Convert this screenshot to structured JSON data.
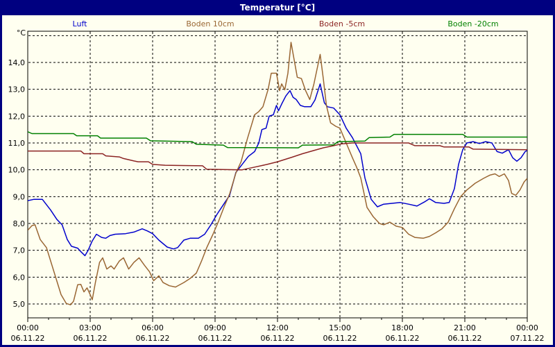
{
  "title_bar": {
    "title": "Temperatur [°C]"
  },
  "legend": {
    "items": [
      {
        "label": "Luft",
        "color": "#0000CC"
      },
      {
        "label": "Boden 10cm",
        "color": "#996633"
      },
      {
        "label": "Boden -5cm",
        "color": "#8B2323"
      },
      {
        "label": "Boden -20cm",
        "color": "#008000"
      }
    ]
  },
  "y_axis": {
    "unit": "°C",
    "tick_values": [
      14,
      13,
      12,
      11,
      10,
      9,
      8,
      7,
      6,
      5
    ],
    "tick_labels": [
      "14,0",
      "13,0",
      "12,0",
      "11,0",
      "10,0",
      "9,0",
      "8,0",
      "7,0",
      "6,0",
      "5,0"
    ],
    "gridline_values": [
      15,
      14,
      13,
      12,
      11,
      10,
      9,
      8,
      7,
      6,
      5
    ]
  },
  "x_axis": {
    "major_hours": [
      0,
      3,
      6,
      9,
      12,
      15,
      18,
      21,
      24
    ],
    "major_labels": [
      {
        "time": "00:00",
        "date": "06.11.22"
      },
      {
        "time": "03:00",
        "date": "06.11.22"
      },
      {
        "time": "06:00",
        "date": "06.11.22"
      },
      {
        "time": "09:00",
        "date": "06.11.22"
      },
      {
        "time": "12:00",
        "date": "06.11.22"
      },
      {
        "time": "15:00",
        "date": "06.11.22"
      },
      {
        "time": "18:00",
        "date": "06.11.22"
      },
      {
        "time": "21:00",
        "date": "06.11.22"
      },
      {
        "time": "00:00",
        "date": "07.11.22"
      }
    ],
    "minor_tick_step_hours": 1
  },
  "chart_data": {
    "type": "line",
    "title": "Temperatur [°C]",
    "x_unit": "hours since 06.11.22 00:00",
    "y_unit": "°C",
    "ylim_gridlines": [
      5,
      15
    ],
    "x_major_gridline_step_hours": 3,
    "grid": "dashed",
    "legend_position": "top",
    "series": [
      {
        "name": "Luft",
        "color": "#0000CC",
        "points": [
          [
            0,
            8.85
          ],
          [
            0.3,
            8.9
          ],
          [
            0.7,
            8.9
          ],
          [
            1.1,
            8.5
          ],
          [
            1.4,
            8.15
          ],
          [
            1.65,
            7.95
          ],
          [
            1.9,
            7.4
          ],
          [
            2.1,
            7.15
          ],
          [
            2.4,
            7.08
          ],
          [
            2.55,
            6.95
          ],
          [
            2.75,
            6.8
          ],
          [
            2.9,
            7.0
          ],
          [
            3.1,
            7.35
          ],
          [
            3.3,
            7.6
          ],
          [
            3.55,
            7.48
          ],
          [
            3.75,
            7.45
          ],
          [
            3.95,
            7.55
          ],
          [
            4.2,
            7.6
          ],
          [
            4.7,
            7.62
          ],
          [
            5.1,
            7.68
          ],
          [
            5.5,
            7.8
          ],
          [
            5.75,
            7.72
          ],
          [
            6.0,
            7.62
          ],
          [
            6.3,
            7.38
          ],
          [
            6.7,
            7.12
          ],
          [
            7.0,
            7.05
          ],
          [
            7.2,
            7.1
          ],
          [
            7.5,
            7.38
          ],
          [
            7.8,
            7.45
          ],
          [
            8.2,
            7.45
          ],
          [
            8.5,
            7.6
          ],
          [
            8.8,
            7.95
          ],
          [
            9.1,
            8.35
          ],
          [
            9.4,
            8.7
          ],
          [
            9.7,
            9.05
          ],
          [
            10.0,
            9.9
          ],
          [
            10.3,
            10.2
          ],
          [
            10.6,
            10.5
          ],
          [
            10.9,
            10.68
          ],
          [
            11.1,
            11.0
          ],
          [
            11.25,
            11.5
          ],
          [
            11.45,
            11.55
          ],
          [
            11.6,
            12.0
          ],
          [
            11.8,
            12.05
          ],
          [
            11.95,
            12.4
          ],
          [
            12.05,
            12.2
          ],
          [
            12.2,
            12.45
          ],
          [
            12.4,
            12.75
          ],
          [
            12.6,
            12.95
          ],
          [
            12.75,
            12.7
          ],
          [
            12.9,
            12.62
          ],
          [
            13.1,
            12.4
          ],
          [
            13.3,
            12.35
          ],
          [
            13.6,
            12.35
          ],
          [
            13.8,
            12.6
          ],
          [
            14.05,
            13.2
          ],
          [
            14.25,
            12.5
          ],
          [
            14.4,
            12.35
          ],
          [
            14.7,
            12.3
          ],
          [
            15.0,
            12.05
          ],
          [
            15.3,
            11.55
          ],
          [
            15.6,
            11.2
          ],
          [
            15.8,
            10.9
          ],
          [
            16.0,
            10.6
          ],
          [
            16.2,
            9.7
          ],
          [
            16.5,
            8.9
          ],
          [
            16.8,
            8.62
          ],
          [
            17.1,
            8.72
          ],
          [
            17.5,
            8.75
          ],
          [
            17.9,
            8.78
          ],
          [
            18.3,
            8.72
          ],
          [
            18.7,
            8.65
          ],
          [
            19.1,
            8.82
          ],
          [
            19.3,
            8.92
          ],
          [
            19.6,
            8.78
          ],
          [
            20.0,
            8.75
          ],
          [
            20.25,
            8.78
          ],
          [
            20.5,
            9.3
          ],
          [
            20.7,
            10.2
          ],
          [
            20.9,
            10.75
          ],
          [
            21.1,
            11.0
          ],
          [
            21.4,
            11.05
          ],
          [
            21.7,
            10.98
          ],
          [
            22.0,
            11.05
          ],
          [
            22.3,
            11.0
          ],
          [
            22.55,
            10.68
          ],
          [
            22.8,
            10.62
          ],
          [
            23.1,
            10.75
          ],
          [
            23.3,
            10.45
          ],
          [
            23.5,
            10.32
          ],
          [
            23.7,
            10.45
          ],
          [
            23.9,
            10.68
          ],
          [
            24,
            10.72
          ]
        ]
      },
      {
        "name": "Boden 10cm",
        "color": "#996633",
        "points": [
          [
            0,
            7.75
          ],
          [
            0.2,
            7.92
          ],
          [
            0.35,
            7.95
          ],
          [
            0.6,
            7.4
          ],
          [
            0.9,
            7.1
          ],
          [
            1.1,
            6.6
          ],
          [
            1.3,
            6.1
          ],
          [
            1.6,
            5.35
          ],
          [
            1.85,
            5.02
          ],
          [
            2.05,
            4.97
          ],
          [
            2.2,
            5.1
          ],
          [
            2.4,
            5.72
          ],
          [
            2.55,
            5.73
          ],
          [
            2.7,
            5.45
          ],
          [
            2.85,
            5.6
          ],
          [
            3.0,
            5.35
          ],
          [
            3.1,
            5.16
          ],
          [
            3.25,
            5.8
          ],
          [
            3.45,
            6.55
          ],
          [
            3.6,
            6.72
          ],
          [
            3.8,
            6.3
          ],
          [
            4.0,
            6.42
          ],
          [
            4.15,
            6.3
          ],
          [
            4.4,
            6.6
          ],
          [
            4.6,
            6.72
          ],
          [
            4.85,
            6.3
          ],
          [
            5.1,
            6.55
          ],
          [
            5.35,
            6.72
          ],
          [
            5.6,
            6.45
          ],
          [
            5.85,
            6.2
          ],
          [
            6.05,
            5.87
          ],
          [
            6.3,
            6.05
          ],
          [
            6.5,
            5.8
          ],
          [
            6.8,
            5.68
          ],
          [
            7.1,
            5.63
          ],
          [
            7.5,
            5.8
          ],
          [
            7.8,
            5.95
          ],
          [
            8.1,
            6.15
          ],
          [
            8.35,
            6.6
          ],
          [
            8.6,
            7.1
          ],
          [
            8.9,
            7.6
          ],
          [
            9.15,
            8.05
          ],
          [
            9.45,
            8.65
          ],
          [
            9.7,
            9.1
          ],
          [
            10.0,
            9.88
          ],
          [
            10.25,
            10.3
          ],
          [
            10.55,
            11.15
          ],
          [
            10.9,
            12.05
          ],
          [
            11.1,
            12.17
          ],
          [
            11.3,
            12.35
          ],
          [
            11.55,
            13.0
          ],
          [
            11.7,
            13.6
          ],
          [
            11.95,
            13.6
          ],
          [
            12.1,
            12.95
          ],
          [
            12.2,
            13.2
          ],
          [
            12.35,
            12.98
          ],
          [
            12.5,
            13.6
          ],
          [
            12.65,
            14.75
          ],
          [
            12.8,
            14.1
          ],
          [
            12.95,
            13.45
          ],
          [
            13.15,
            13.4
          ],
          [
            13.35,
            12.95
          ],
          [
            13.55,
            12.62
          ],
          [
            13.75,
            13.2
          ],
          [
            14.05,
            14.3
          ],
          [
            14.2,
            13.4
          ],
          [
            14.35,
            12.4
          ],
          [
            14.55,
            11.75
          ],
          [
            14.8,
            11.62
          ],
          [
            15.0,
            11.55
          ],
          [
            15.3,
            11.0
          ],
          [
            15.6,
            10.45
          ],
          [
            15.8,
            10.1
          ],
          [
            16.0,
            9.7
          ],
          [
            16.3,
            8.6
          ],
          [
            16.6,
            8.25
          ],
          [
            16.9,
            8.0
          ],
          [
            17.1,
            7.95
          ],
          [
            17.4,
            8.05
          ],
          [
            17.7,
            7.9
          ],
          [
            18.0,
            7.85
          ],
          [
            18.3,
            7.6
          ],
          [
            18.6,
            7.48
          ],
          [
            19.0,
            7.45
          ],
          [
            19.3,
            7.52
          ],
          [
            19.6,
            7.65
          ],
          [
            19.9,
            7.8
          ],
          [
            20.2,
            8.05
          ],
          [
            20.5,
            8.55
          ],
          [
            20.8,
            9.0
          ],
          [
            21.1,
            9.25
          ],
          [
            21.5,
            9.5
          ],
          [
            21.9,
            9.68
          ],
          [
            22.2,
            9.8
          ],
          [
            22.45,
            9.85
          ],
          [
            22.65,
            9.75
          ],
          [
            22.9,
            9.85
          ],
          [
            23.1,
            9.6
          ],
          [
            23.25,
            9.12
          ],
          [
            23.45,
            9.05
          ],
          [
            23.65,
            9.25
          ],
          [
            23.85,
            9.55
          ],
          [
            24,
            9.68
          ]
        ]
      },
      {
        "name": "Boden -5cm",
        "color": "#8B2323",
        "points": [
          [
            0,
            10.7
          ],
          [
            2.55,
            10.7
          ],
          [
            2.7,
            10.6
          ],
          [
            3.6,
            10.6
          ],
          [
            3.75,
            10.52
          ],
          [
            4.4,
            10.48
          ],
          [
            4.6,
            10.42
          ],
          [
            5.1,
            10.33
          ],
          [
            5.3,
            10.3
          ],
          [
            5.8,
            10.3
          ],
          [
            6.0,
            10.2
          ],
          [
            6.6,
            10.17
          ],
          [
            8.4,
            10.15
          ],
          [
            8.6,
            10.02
          ],
          [
            10.3,
            10.0
          ],
          [
            10.9,
            10.1
          ],
          [
            11.5,
            10.2
          ],
          [
            12.0,
            10.3
          ],
          [
            12.7,
            10.47
          ],
          [
            13.2,
            10.6
          ],
          [
            13.8,
            10.73
          ],
          [
            14.2,
            10.82
          ],
          [
            14.7,
            10.9
          ],
          [
            15.1,
            10.97
          ],
          [
            15.6,
            11.0
          ],
          [
            18.3,
            11.0
          ],
          [
            18.6,
            10.9
          ],
          [
            19.8,
            10.9
          ],
          [
            20.0,
            10.85
          ],
          [
            21.2,
            10.85
          ],
          [
            21.4,
            10.77
          ],
          [
            24,
            10.75
          ]
        ]
      },
      {
        "name": "Boden -20cm",
        "color": "#008000",
        "points": [
          [
            0,
            11.42
          ],
          [
            0.2,
            11.35
          ],
          [
            2.2,
            11.35
          ],
          [
            2.35,
            11.27
          ],
          [
            3.35,
            11.27
          ],
          [
            3.5,
            11.18
          ],
          [
            5.7,
            11.18
          ],
          [
            5.9,
            11.08
          ],
          [
            7.9,
            11.05
          ],
          [
            8.1,
            10.95
          ],
          [
            9.4,
            10.92
          ],
          [
            9.6,
            10.83
          ],
          [
            13.0,
            10.82
          ],
          [
            13.2,
            10.92
          ],
          [
            14.7,
            10.93
          ],
          [
            14.9,
            11.05
          ],
          [
            16.2,
            11.07
          ],
          [
            16.4,
            11.2
          ],
          [
            17.4,
            11.22
          ],
          [
            17.6,
            11.32
          ],
          [
            20.9,
            11.32
          ],
          [
            21.1,
            11.22
          ],
          [
            24,
            11.22
          ]
        ]
      }
    ]
  }
}
